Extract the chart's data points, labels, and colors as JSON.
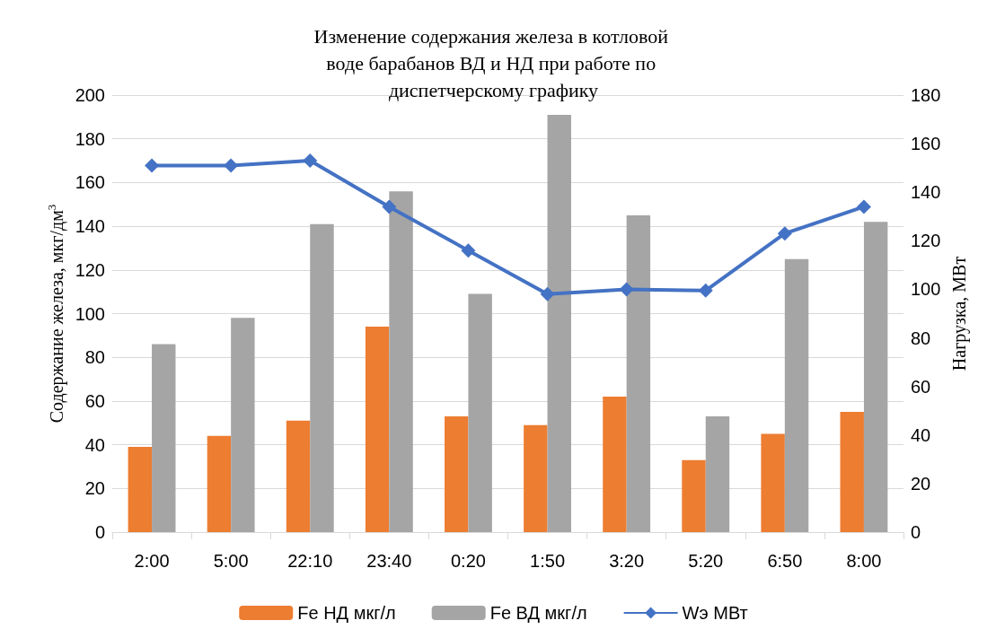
{
  "chart_data": {
    "type": "bar",
    "title": "Изменение содержания железа в котловой воде барабанов ВД и НД при работе по диспетчерскому графику",
    "ylabel": "Содержание железа, мкг/дм$^{3}$",
    "y2label": "Нагрузка, МВт",
    "categories": [
      "2:00",
      "5:00",
      "22:10",
      "23:40",
      "0:20",
      "1:50",
      "3:20",
      "5:20",
      "6:50",
      "8:00"
    ],
    "series": [
      {
        "name": "Fe НД мкг/л",
        "color": "#ed7d31",
        "values": [
          39,
          44,
          51,
          94,
          53,
          49,
          62,
          33,
          45,
          55
        ]
      },
      {
        "name": "Fe ВД мкг/л",
        "color": "#a5a5a5",
        "values": [
          86,
          98,
          141,
          156,
          109,
          191,
          145,
          53,
          125,
          142
        ]
      },
      {
        "name": "Wэ МВт",
        "type": "line",
        "axis": "y2",
        "color": "#4472c4",
        "marker": "diamond",
        "values": [
          151,
          151,
          153,
          134,
          116,
          98,
          100,
          99.5,
          123,
          134
        ]
      }
    ],
    "ylim": [
      0,
      200
    ],
    "yticks": [
      0,
      20,
      40,
      60,
      80,
      100,
      120,
      140,
      160,
      180,
      200
    ],
    "y2lim": [
      0,
      180
    ],
    "y2ticks": [
      0,
      20,
      40,
      60,
      80,
      100,
      120,
      140,
      160,
      180
    ],
    "grid": "y",
    "legend": "bottom"
  }
}
